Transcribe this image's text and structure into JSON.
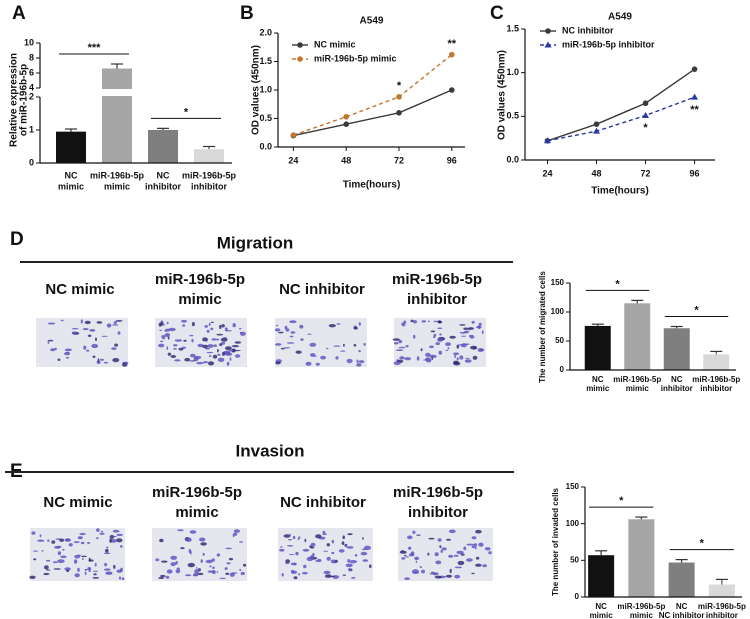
{
  "chart_data": [
    {
      "panel": "A",
      "type": "bar",
      "ylabel": [
        "Relative expression",
        "of miR-196b-5p"
      ],
      "categories": [
        [
          "NC",
          "mimic"
        ],
        [
          "miR-196b-5p",
          "mimic"
        ],
        [
          "NC",
          "inhibitor"
        ],
        [
          "miR-196b-5p",
          "inhibitor"
        ]
      ],
      "values": [
        0.95,
        6.6,
        1.0,
        0.42
      ],
      "errors": [
        0.08,
        0.6,
        0.05,
        0.08
      ],
      "colors": [
        "#111111",
        "#a6a6a6",
        "#7f7f7f",
        "#d9d9d9"
      ],
      "ylim": [
        0,
        10
      ],
      "axis_break": [
        2,
        4
      ],
      "yticks": [
        0,
        1,
        2,
        4,
        6,
        8,
        10
      ],
      "annotations": [
        {
          "text": "***",
          "pair": [
            0,
            1
          ]
        },
        {
          "text": "*",
          "pair": [
            2,
            3
          ]
        }
      ]
    },
    {
      "panel": "B",
      "type": "line",
      "title": "A549",
      "xlabel": "Time(hours)",
      "ylabel": "OD values (450nm)",
      "x": [
        24,
        48,
        72,
        96
      ],
      "xlim": [
        17,
        102
      ],
      "xticks": [
        24,
        48,
        72,
        96
      ],
      "ylim": [
        0,
        2
      ],
      "yticks": [
        {
          "value": 0,
          "label": "0.0"
        },
        {
          "value": 0.5,
          "label": "0.5"
        },
        {
          "value": 1,
          "label": "1.0"
        },
        {
          "value": 1.5,
          "label": "1.5"
        },
        {
          "value": 2,
          "label": "2.0"
        }
      ],
      "legend": "upper left",
      "series": [
        {
          "name": "NC mimic",
          "color": "#3a3a3a",
          "marker": "circle",
          "dashed": false,
          "values": [
            0.2,
            0.4,
            0.6,
            1.0
          ],
          "errors": [
            0.02,
            0.02,
            0.02,
            0.03
          ]
        },
        {
          "name": "miR-196b-5p mimic",
          "color": "#c0782e",
          "marker": "circle",
          "dashed": true,
          "values": [
            0.21,
            0.53,
            0.88,
            1.62
          ],
          "errors": [
            0.02,
            0.02,
            0.03,
            0.03
          ]
        }
      ],
      "annotations": [
        {
          "text": "*",
          "at": 72,
          "series": 1,
          "position": "above"
        },
        {
          "text": "**",
          "at": 96,
          "series": 1,
          "position": "above"
        }
      ]
    },
    {
      "panel": "C",
      "type": "line",
      "title": "A549",
      "xlabel": "Time(hours)",
      "ylabel": "OD values (450nm)",
      "x": [
        24,
        48,
        72,
        96
      ],
      "xlim": [
        13,
        106
      ],
      "xticks": [
        24,
        48,
        72,
        96
      ],
      "ylim": [
        0,
        1.5
      ],
      "yticks": [
        {
          "value": 0,
          "label": "0.0"
        },
        {
          "value": 0.5,
          "label": "0.5"
        },
        {
          "value": 1,
          "label": "1.0"
        },
        {
          "value": 1.5,
          "label": "1.5"
        }
      ],
      "legend": "upper left",
      "series": [
        {
          "name": "NC inhibitor",
          "color": "#3a3a3a",
          "marker": "circle",
          "dashed": false,
          "values": [
            0.22,
            0.41,
            0.65,
            1.04
          ],
          "errors": [
            0.01,
            0.02,
            0.03,
            0.02
          ]
        },
        {
          "name": "miR-196b-5p inhibitor",
          "color": "#2b3a9c",
          "marker": "triangle",
          "dashed": true,
          "values": [
            0.22,
            0.33,
            0.51,
            0.72
          ],
          "errors": [
            0.01,
            0.01,
            0.02,
            0.02
          ]
        }
      ],
      "annotations": [
        {
          "text": "*",
          "at": 72,
          "series": 1,
          "position": "below"
        },
        {
          "text": "**",
          "at": 96,
          "series": 1,
          "position": "below"
        }
      ]
    },
    {
      "panel": "D",
      "type": "bar",
      "heading": "Migration",
      "image_labels": [
        [
          "NC mimic"
        ],
        [
          "miR-196b-5p",
          "mimic"
        ],
        [
          "NC inhibitor"
        ],
        [
          "miR-196b-5p",
          "inhibitor"
        ]
      ],
      "ylabel": [
        "The number of migrated cells"
      ],
      "categories": [
        [
          "NC",
          "mimic"
        ],
        [
          "miR-196b-5p",
          "mimic"
        ],
        [
          "NC",
          "inhibitor"
        ],
        [
          "miR-196b-5p",
          "inhibitor"
        ]
      ],
      "values": [
        76,
        115,
        72,
        27
      ],
      "errors": [
        3,
        5,
        3,
        5
      ],
      "colors": [
        "#111111",
        "#a6a6a6",
        "#7f7f7f",
        "#d9d9d9"
      ],
      "ylim": [
        0,
        150
      ],
      "yticks": [
        0,
        50,
        100,
        150
      ],
      "annotations": [
        {
          "text": "*",
          "pair": [
            0,
            1
          ]
        },
        {
          "text": "*",
          "pair": [
            2,
            3
          ]
        }
      ]
    },
    {
      "panel": "E",
      "type": "bar",
      "heading": "Invasion",
      "image_labels": [
        [
          "NC mimic"
        ],
        [
          "miR-196b-5p",
          "mimic"
        ],
        [
          "NC inhibitor"
        ],
        [
          "miR-196b-5p",
          "inhibitor"
        ]
      ],
      "ylabel": [
        "The number of invaded cells"
      ],
      "categories": [
        [
          "NC",
          "mimic"
        ],
        [
          "miR-196b-5p",
          "mimic"
        ],
        [
          "NC",
          "NC inhibitor"
        ],
        [
          "miR-196b-5p",
          "inhibitor"
        ]
      ],
      "values": [
        57,
        106,
        47,
        17
      ],
      "errors": [
        6,
        3,
        4,
        7
      ],
      "colors": [
        "#111111",
        "#a6a6a6",
        "#7f7f7f",
        "#d9d9d9"
      ],
      "ylim": [
        0,
        150
      ],
      "yticks": [
        0,
        50,
        100,
        150
      ],
      "annotations": [
        {
          "text": "*",
          "pair": [
            0,
            1
          ]
        },
        {
          "text": "*",
          "pair": [
            2,
            3
          ]
        }
      ]
    }
  ]
}
